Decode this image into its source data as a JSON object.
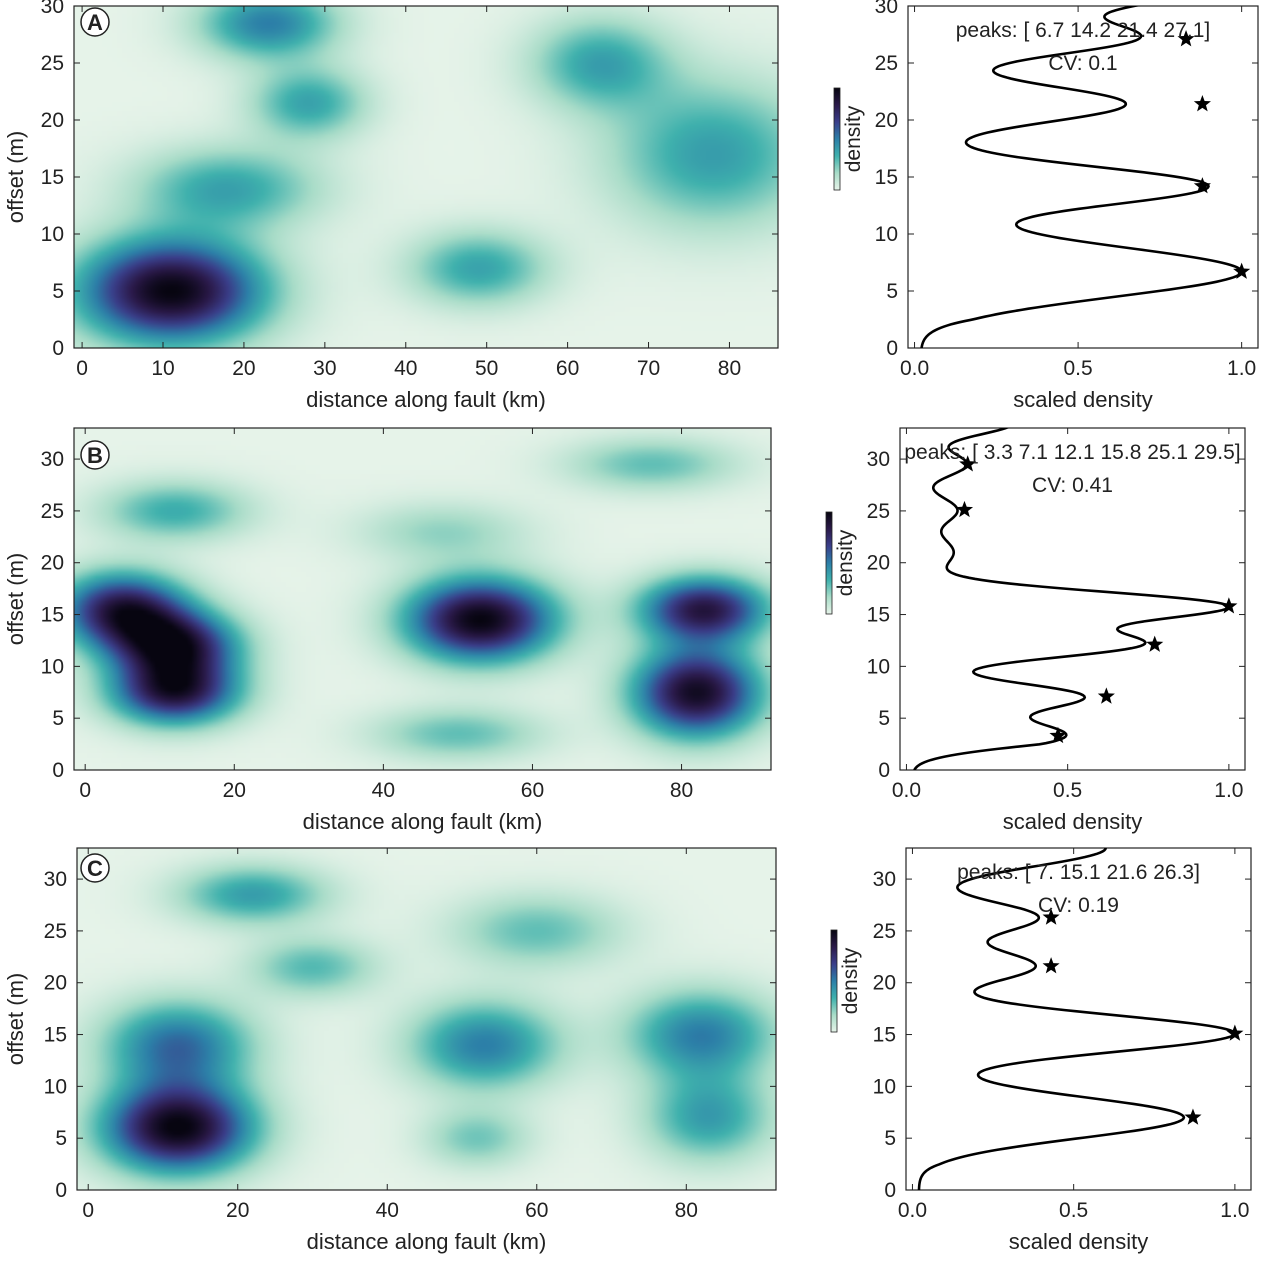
{
  "figure": {
    "background": "#ffffff",
    "colormap": [
      "#e6f3e9",
      "#a8dcc8",
      "#3fb1ad",
      "#2c7fa8",
      "#3a3e8a",
      "#2b1a4a",
      "#070510"
    ]
  },
  "chart_data": [
    {
      "id": "A",
      "panel_label": "A",
      "type": "heatmap",
      "title": "",
      "xlabel": "distance along fault (km)",
      "ylabel": "offset (m)",
      "xlim": [
        -1,
        86
      ],
      "ylim": [
        0,
        30
      ],
      "xticks": [
        0,
        10,
        20,
        30,
        40,
        50,
        60,
        70,
        80
      ],
      "yticks": [
        0,
        5,
        10,
        15,
        20,
        25,
        30
      ],
      "blobs": [
        {
          "x": 11,
          "y": 5,
          "sx": 8,
          "sy": 3.2,
          "a": 1.0
        },
        {
          "x": 23,
          "y": 28.5,
          "sx": 6,
          "sy": 2.2,
          "a": 0.5
        },
        {
          "x": 28,
          "y": 21.5,
          "sx": 5,
          "sy": 2.2,
          "a": 0.38
        },
        {
          "x": 18,
          "y": 14,
          "sx": 8,
          "sy": 2.5,
          "a": 0.38
        },
        {
          "x": 64,
          "y": 25,
          "sx": 6,
          "sy": 2.8,
          "a": 0.38
        },
        {
          "x": 78,
          "y": 17,
          "sx": 9,
          "sy": 4.5,
          "a": 0.4
        },
        {
          "x": 49,
          "y": 7,
          "sx": 6,
          "sy": 2.3,
          "a": 0.38
        }
      ],
      "colorbar_label": "density",
      "density_profile": {
        "xlabel": "scaled density",
        "xlim": [
          -0.02,
          1.05
        ],
        "xticks": [
          0.0,
          0.5,
          1.0
        ],
        "xticklabels": [
          "0.0",
          "0.5",
          "1.0"
        ],
        "ylim": [
          0,
          30
        ],
        "yticks": [
          0,
          5,
          10,
          15,
          20,
          25,
          30
        ],
        "baseline": 0.02,
        "components": [
          {
            "y": 6.7,
            "a": 0.94,
            "s": 2.2
          },
          {
            "y": 14.2,
            "a": 0.84,
            "s": 1.7
          },
          {
            "y": 21.4,
            "a": 0.6,
            "s": 1.6
          },
          {
            "y": 27.2,
            "a": 0.62,
            "s": 1.5
          },
          {
            "y": 31.5,
            "a": 0.8,
            "s": 1.6
          }
        ],
        "peaks": [
          {
            "y": 6.7,
            "d": 1.0
          },
          {
            "y": 14.2,
            "d": 0.88
          },
          {
            "y": 21.4,
            "d": 0.88
          },
          {
            "y": 27.1,
            "d": 0.83
          }
        ],
        "annotation": "peaks: [ 6.7 14.2 21.4 27.1]",
        "cv": "CV: 0.1"
      }
    },
    {
      "id": "B",
      "panel_label": "B",
      "type": "heatmap",
      "title": "",
      "xlabel": "distance along fault (km)",
      "ylabel": "offset (m)",
      "xlim": [
        -1.5,
        92
      ],
      "ylim": [
        0,
        33
      ],
      "xticks": [
        0,
        20,
        40,
        60,
        80
      ],
      "yticks": [
        0,
        5,
        10,
        15,
        20,
        25,
        30
      ],
      "blobs": [
        {
          "x": 5,
          "y": 15.5,
          "sx": 6,
          "sy": 2.5,
          "a": 0.85
        },
        {
          "x": 12,
          "y": 12,
          "sx": 6,
          "sy": 2.3,
          "a": 0.85
        },
        {
          "x": 12,
          "y": 7.5,
          "sx": 6,
          "sy": 2.2,
          "a": 0.85
        },
        {
          "x": 53,
          "y": 14.5,
          "sx": 7,
          "sy": 2.8,
          "a": 1.0
        },
        {
          "x": 83,
          "y": 15.5,
          "sx": 6,
          "sy": 2.2,
          "a": 0.85
        },
        {
          "x": 82,
          "y": 7.5,
          "sx": 6,
          "sy": 3,
          "a": 0.95
        },
        {
          "x": 12,
          "y": 25,
          "sx": 7,
          "sy": 2,
          "a": 0.35
        },
        {
          "x": 76,
          "y": 29.5,
          "sx": 8,
          "sy": 1.8,
          "a": 0.28
        },
        {
          "x": 48,
          "y": 23,
          "sx": 8,
          "sy": 2,
          "a": 0.2
        },
        {
          "x": 50,
          "y": 3.5,
          "sx": 8,
          "sy": 1.8,
          "a": 0.28
        }
      ],
      "colorbar_label": "density",
      "density_profile": {
        "xlabel": "scaled density",
        "xlim": [
          -0.02,
          1.05
        ],
        "xticks": [
          0.0,
          0.5,
          1.0
        ],
        "xticklabels": [
          "0.0",
          "0.5",
          "1.0"
        ],
        "ylim": [
          0,
          33
        ],
        "yticks": [
          0,
          5,
          10,
          15,
          20,
          25,
          30
        ],
        "baseline": 0.02,
        "components": [
          {
            "y": 3.3,
            "a": 0.45,
            "s": 1.4
          },
          {
            "y": 7.1,
            "a": 0.5,
            "s": 1.3
          },
          {
            "y": 12.1,
            "a": 0.66,
            "s": 1.3
          },
          {
            "y": 15.8,
            "a": 0.93,
            "s": 1.4
          },
          {
            "y": 21.0,
            "a": 0.12,
            "s": 1.5
          },
          {
            "y": 25.1,
            "a": 0.13,
            "s": 1.3
          },
          {
            "y": 29.5,
            "a": 0.16,
            "s": 1.2
          },
          {
            "y": 33.5,
            "a": 0.3,
            "s": 1.2
          }
        ],
        "peaks": [
          {
            "y": 3.3,
            "d": 0.47
          },
          {
            "y": 7.1,
            "d": 0.62
          },
          {
            "y": 12.1,
            "d": 0.77
          },
          {
            "y": 15.8,
            "d": 1.0
          },
          {
            "y": 25.1,
            "d": 0.18
          },
          {
            "y": 29.5,
            "d": 0.19
          }
        ],
        "annotation": "peaks: [ 3.3  7.1 12.1 15.8 25.1 29.5]",
        "cv": "CV: 0.41"
      }
    },
    {
      "id": "C",
      "panel_label": "C",
      "type": "heatmap",
      "title": "",
      "xlabel": "distance along fault (km)",
      "ylabel": "offset (m)",
      "xlim": [
        -1.5,
        92
      ],
      "ylim": [
        0,
        33
      ],
      "xticks": [
        0,
        20,
        40,
        60,
        80
      ],
      "yticks": [
        0,
        5,
        10,
        15,
        20,
        25,
        30
      ],
      "blobs": [
        {
          "x": 12,
          "y": 6,
          "sx": 7,
          "sy": 3,
          "a": 1.0
        },
        {
          "x": 12,
          "y": 14,
          "sx": 7,
          "sy": 3,
          "a": 0.55
        },
        {
          "x": 53,
          "y": 14,
          "sx": 7,
          "sy": 3,
          "a": 0.5
        },
        {
          "x": 82,
          "y": 15,
          "sx": 7,
          "sy": 3,
          "a": 0.5
        },
        {
          "x": 83,
          "y": 7,
          "sx": 6,
          "sy": 3,
          "a": 0.4
        },
        {
          "x": 22,
          "y": 28.5,
          "sx": 7,
          "sy": 2,
          "a": 0.4
        },
        {
          "x": 30,
          "y": 21.5,
          "sx": 6,
          "sy": 2,
          "a": 0.3
        },
        {
          "x": 60,
          "y": 25,
          "sx": 8,
          "sy": 2.5,
          "a": 0.28
        },
        {
          "x": 52,
          "y": 5,
          "sx": 5,
          "sy": 2,
          "a": 0.25
        }
      ],
      "colorbar_label": "density",
      "density_profile": {
        "xlabel": "scaled density",
        "xlim": [
          -0.02,
          1.05
        ],
        "xticks": [
          0.0,
          0.5,
          1.0
        ],
        "xticklabels": [
          "0.0",
          "0.5",
          "1.0"
        ],
        "ylim": [
          0,
          33
        ],
        "yticks": [
          0,
          5,
          10,
          15,
          20,
          25,
          30
        ],
        "baseline": 0.02,
        "components": [
          {
            "y": 7.0,
            "a": 0.78,
            "s": 2.0
          },
          {
            "y": 15.1,
            "a": 0.93,
            "s": 1.8
          },
          {
            "y": 21.6,
            "a": 0.34,
            "s": 1.5
          },
          {
            "y": 26.3,
            "a": 0.35,
            "s": 1.5
          },
          {
            "y": 33.0,
            "a": 0.55,
            "s": 1.8
          }
        ],
        "peaks": [
          {
            "y": 7.0,
            "d": 0.87
          },
          {
            "y": 15.1,
            "d": 1.0
          },
          {
            "y": 21.6,
            "d": 0.43
          },
          {
            "y": 26.3,
            "d": 0.43
          }
        ],
        "annotation": "peaks: [ 7.  15.1 21.6 26.3]",
        "cv": "CV: 0.19"
      }
    }
  ]
}
